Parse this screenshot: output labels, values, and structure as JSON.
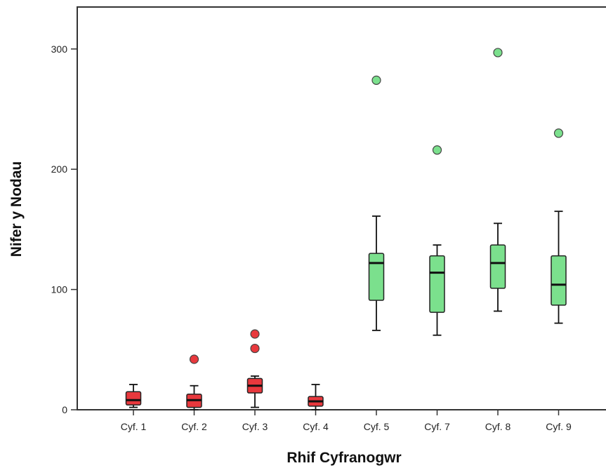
{
  "chart_data": {
    "type": "boxplot",
    "xlabel": "Rhif Cyfranogwr",
    "ylabel": "Nifer y Nodau",
    "ylim": [
      0,
      330
    ],
    "yticks": [
      0,
      100,
      200,
      300
    ],
    "grid": false,
    "categories": [
      "Cyf. 1",
      "Cyf. 2",
      "Cyf. 3",
      "Cyf. 4",
      "Cyf. 5",
      "Cyf. 7",
      "Cyf. 8",
      "Cyf. 9"
    ],
    "boxes": [
      {
        "category": "Cyf. 1",
        "min": 2,
        "q1": 4,
        "median": 8,
        "q3": 15,
        "max": 21,
        "outliers": [],
        "color": "#e8383d"
      },
      {
        "category": "Cyf. 2",
        "min": 0,
        "q1": 2,
        "median": 8,
        "q3": 13,
        "max": 20,
        "outliers": [
          42
        ],
        "color": "#e8383d"
      },
      {
        "category": "Cyf. 3",
        "min": 2,
        "q1": 14,
        "median": 20,
        "q3": 26,
        "max": 28,
        "outliers": [
          51,
          63
        ],
        "color": "#e8383d"
      },
      {
        "category": "Cyf. 4",
        "min": 0,
        "q1": 3,
        "median": 7,
        "q3": 11,
        "max": 21,
        "outliers": [],
        "color": "#e8383d"
      },
      {
        "category": "Cyf. 5",
        "min": 66,
        "q1": 91,
        "median": 122,
        "q3": 130,
        "max": 161,
        "outliers": [
          274
        ],
        "color": "#7be08d"
      },
      {
        "category": "Cyf. 7",
        "min": 62,
        "q1": 81,
        "median": 114,
        "q3": 128,
        "max": 137,
        "outliers": [
          216
        ],
        "color": "#7be08d"
      },
      {
        "category": "Cyf. 8",
        "min": 82,
        "q1": 101,
        "median": 122,
        "q3": 137,
        "max": 155,
        "outliers": [
          297
        ],
        "color": "#7be08d"
      },
      {
        "category": "Cyf. 9",
        "min": 72,
        "q1": 87,
        "median": 104,
        "q3": 128,
        "max": 165,
        "outliers": [
          230
        ],
        "color": "#7be08d"
      }
    ]
  }
}
